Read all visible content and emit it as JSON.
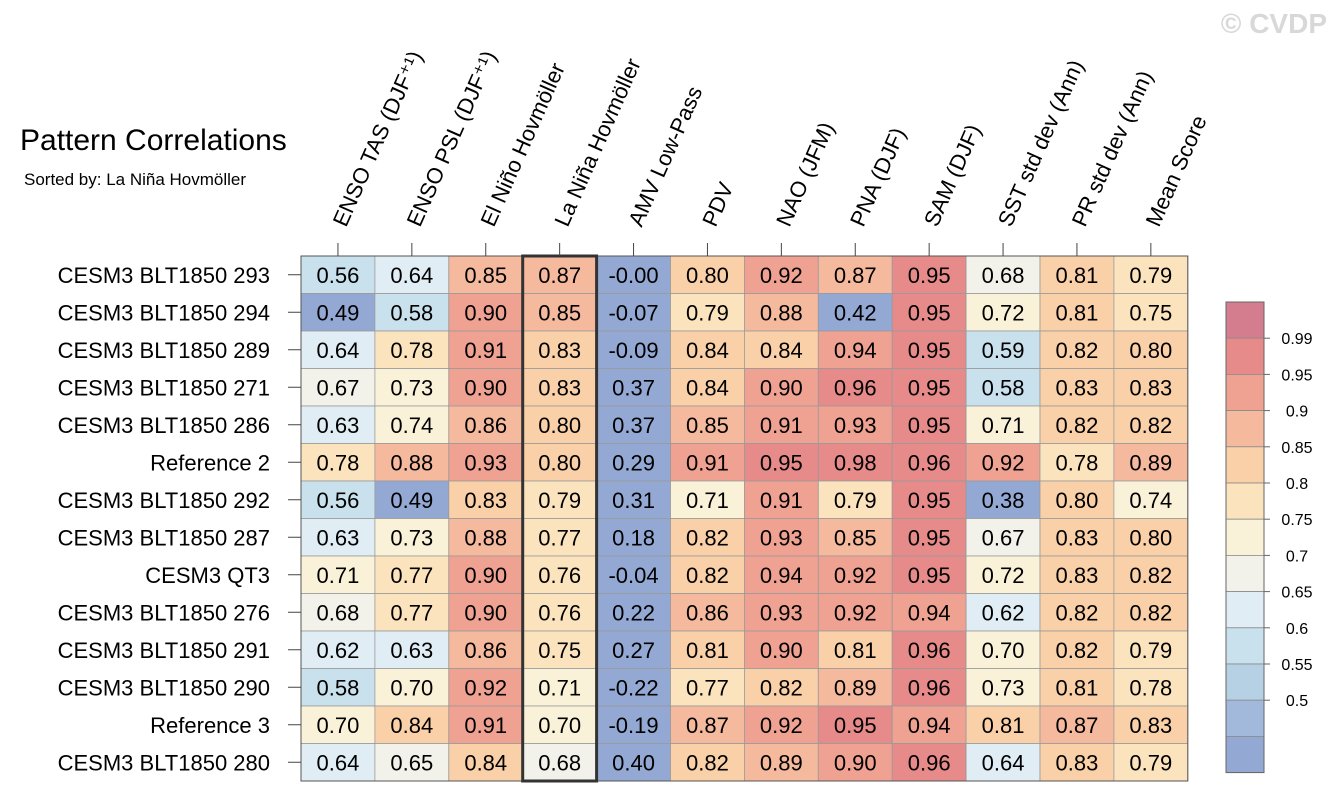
{
  "title": "Pattern Correlations",
  "subtitle": "Sorted by: La Niña Hovmöller",
  "watermark": "© CVDP",
  "chart_data": {
    "type": "heatmap",
    "columns": [
      "ENSO TAS (DJF⁺¹)",
      "ENSO PSL (DJF⁺¹)",
      "El Niño Hovmöller",
      "La Niña Hovmöller",
      "AMV Low-Pass",
      "PDV",
      "NAO (JFM)",
      "PNA (DJF)",
      "SAM (DJF)",
      "SST std dev (Ann)",
      "PR std dev (Ann)",
      "Mean Score"
    ],
    "rows": [
      "CESM3 BLT1850 293",
      "CESM3 BLT1850 294",
      "CESM3 BLT1850 289",
      "CESM3 BLT1850 271",
      "CESM3 BLT1850 286",
      "Reference 2",
      "CESM3 BLT1850 292",
      "CESM3 BLT1850 287",
      "CESM3 QT3",
      "CESM3 BLT1850 276",
      "CESM3 BLT1850 291",
      "CESM3 BLT1850 290",
      "Reference 3",
      "CESM3 BLT1850 280"
    ],
    "values": [
      [
        "0.56",
        "0.64",
        "0.85",
        "0.87",
        "-0.00",
        "0.80",
        "0.92",
        "0.87",
        "0.95",
        "0.68",
        "0.81",
        "0.79"
      ],
      [
        "0.49",
        "0.58",
        "0.90",
        "0.85",
        "-0.07",
        "0.79",
        "0.88",
        "0.42",
        "0.95",
        "0.72",
        "0.81",
        "0.75"
      ],
      [
        "0.64",
        "0.78",
        "0.91",
        "0.83",
        "-0.09",
        "0.84",
        "0.84",
        "0.94",
        "0.95",
        "0.59",
        "0.82",
        "0.80"
      ],
      [
        "0.67",
        "0.73",
        "0.90",
        "0.83",
        "0.37",
        "0.84",
        "0.90",
        "0.96",
        "0.95",
        "0.58",
        "0.83",
        "0.83"
      ],
      [
        "0.63",
        "0.74",
        "0.86",
        "0.80",
        "0.37",
        "0.85",
        "0.91",
        "0.93",
        "0.95",
        "0.71",
        "0.82",
        "0.82"
      ],
      [
        "0.78",
        "0.88",
        "0.93",
        "0.80",
        "0.29",
        "0.91",
        "0.95",
        "0.98",
        "0.96",
        "0.92",
        "0.78",
        "0.89"
      ],
      [
        "0.56",
        "0.49",
        "0.83",
        "0.79",
        "0.31",
        "0.71",
        "0.91",
        "0.79",
        "0.95",
        "0.38",
        "0.80",
        "0.74"
      ],
      [
        "0.63",
        "0.73",
        "0.88",
        "0.77",
        "0.18",
        "0.82",
        "0.93",
        "0.85",
        "0.95",
        "0.67",
        "0.83",
        "0.80"
      ],
      [
        "0.71",
        "0.77",
        "0.90",
        "0.76",
        "-0.04",
        "0.82",
        "0.94",
        "0.92",
        "0.95",
        "0.72",
        "0.83",
        "0.82"
      ],
      [
        "0.68",
        "0.77",
        "0.90",
        "0.76",
        "0.22",
        "0.86",
        "0.93",
        "0.92",
        "0.94",
        "0.62",
        "0.82",
        "0.82"
      ],
      [
        "0.62",
        "0.63",
        "0.86",
        "0.75",
        "0.27",
        "0.81",
        "0.90",
        "0.81",
        "0.96",
        "0.70",
        "0.82",
        "0.79"
      ],
      [
        "0.58",
        "0.70",
        "0.92",
        "0.71",
        "-0.22",
        "0.77",
        "0.82",
        "0.89",
        "0.96",
        "0.73",
        "0.81",
        "0.78"
      ],
      [
        "0.70",
        "0.84",
        "0.91",
        "0.70",
        "-0.19",
        "0.87",
        "0.92",
        "0.95",
        "0.94",
        "0.81",
        "0.87",
        "0.83"
      ],
      [
        "0.64",
        "0.65",
        "0.84",
        "0.68",
        "0.40",
        "0.82",
        "0.89",
        "0.90",
        "0.96",
        "0.64",
        "0.83",
        "0.79"
      ]
    ],
    "highlighted_column": "La Niña Hovmöller",
    "colorbar": {
      "labels": [
        "0.99",
        "0.95",
        "0.9",
        "0.85",
        "0.8",
        "0.75",
        "0.7",
        "0.65",
        "0.6",
        "0.55",
        "0.5"
      ],
      "levels": [
        0.99,
        0.95,
        0.9,
        0.85,
        0.8,
        0.75,
        0.7,
        0.65,
        0.6,
        0.55,
        0.5
      ],
      "colors": [
        "#d47d8f",
        "#e68a8a",
        "#f0a292",
        "#f5b99e",
        "#f9d0a8",
        "#fbe3bd",
        "#faf2d8",
        "#f2f2ea",
        "#e0edf4",
        "#c9e0ed",
        "#b6d1e4",
        "#a3b9dc",
        "#94a8d4"
      ]
    }
  }
}
